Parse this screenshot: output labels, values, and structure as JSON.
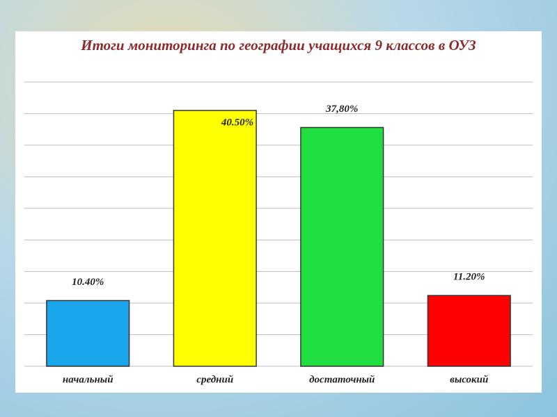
{
  "chart_data": {
    "type": "bar",
    "title": "Итоги мониторинга по географии учащихся 9 классов в ОУЗ",
    "categories": [
      "начальный",
      "средний",
      "достаточный",
      "высокий"
    ],
    "values": [
      10.4,
      40.5,
      37.8,
      11.2
    ],
    "value_labels": [
      "10.40%",
      "40.50%",
      "37,80%",
      "11.20%"
    ],
    "colors": [
      "#1aa6ea",
      "#ffff00",
      "#20dd40",
      "#ff0000"
    ],
    "ylim": [
      0,
      45
    ],
    "yticks": [
      0,
      5,
      10,
      15,
      20,
      25,
      30,
      35,
      40,
      45
    ],
    "grid": true
  }
}
